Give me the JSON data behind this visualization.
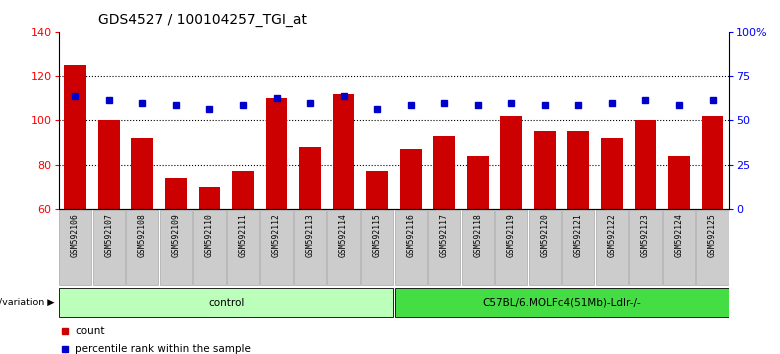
{
  "title": "GDS4527 / 100104257_TGI_at",
  "samples": [
    "GSM592106",
    "GSM592107",
    "GSM592108",
    "GSM592109",
    "GSM592110",
    "GSM592111",
    "GSM592112",
    "GSM592113",
    "GSM592114",
    "GSM592115",
    "GSM592116",
    "GSM592117",
    "GSM592118",
    "GSM592119",
    "GSM592120",
    "GSM592121",
    "GSM592122",
    "GSM592123",
    "GSM592124",
    "GSM592125"
  ],
  "counts": [
    125,
    100,
    92,
    74,
    70,
    77,
    110,
    88,
    112,
    77,
    87,
    93,
    84,
    102,
    95,
    95,
    92,
    100,
    84,
    102
  ],
  "percentile_left": [
    111,
    109,
    108,
    107,
    105,
    107,
    110,
    108,
    111,
    105,
    107,
    108,
    107,
    108,
    107,
    107,
    108,
    109,
    107,
    109
  ],
  "bar_color": "#cc0000",
  "dot_color": "#0000cc",
  "left_ylim": [
    60,
    140
  ],
  "right_ylim": [
    0,
    100
  ],
  "left_yticks": [
    60,
    80,
    100,
    120,
    140
  ],
  "right_yticks": [
    0,
    25,
    50,
    75,
    100
  ],
  "right_yticklabels": [
    "0",
    "25",
    "50",
    "75",
    "100%"
  ],
  "grid_vals": [
    80,
    100,
    120
  ],
  "groups": [
    {
      "label": "control",
      "start": 0,
      "end": 9,
      "color": "#bbffbb"
    },
    {
      "label": "C57BL/6.MOLFc4(51Mb)-Ldlr-/-",
      "start": 10,
      "end": 19,
      "color": "#44dd44"
    }
  ],
  "sample_box_color": "#cccccc",
  "bar_width": 0.65,
  "title_fontsize": 10,
  "dot_size": 4
}
